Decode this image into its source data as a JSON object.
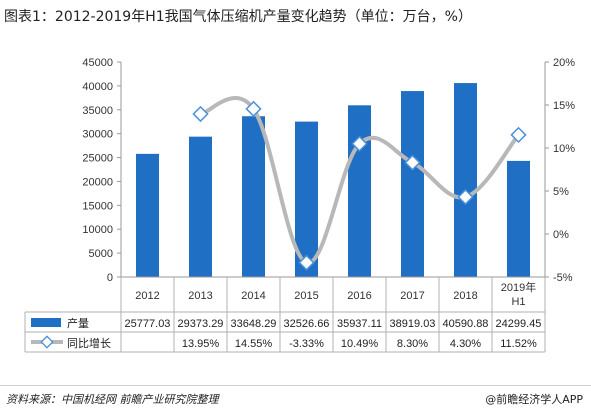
{
  "title": "图表1：2012-2019年H1我国气体压缩机产量变化趋势（单位：万台，%）",
  "footer": {
    "source": "资料来源：中国机经网  前瞻产业研究院整理",
    "brand": "@前瞻经济学人APP"
  },
  "colors": {
    "bar": "#1f6fc5",
    "line": "#b8b8b8",
    "marker": "#4a90d9"
  },
  "chart_data": {
    "type": "bar",
    "categories": [
      "2012",
      "2013",
      "2014",
      "2015",
      "2016",
      "2017",
      "2018",
      "2019年H1"
    ],
    "series": [
      {
        "name": "产量",
        "type": "bar",
        "axis": "left",
        "values": [
          25777.03,
          29373.29,
          33648.29,
          32526.66,
          35937.11,
          38919.03,
          40590.88,
          24299.45
        ],
        "labels": [
          "25777.03",
          "29373.29",
          "33648.29",
          "32526.66",
          "35937.11",
          "38919.03",
          "40590.88",
          "24299.45"
        ]
      },
      {
        "name": "同比增长",
        "type": "line",
        "axis": "right",
        "values": [
          null,
          13.95,
          14.55,
          -3.33,
          10.49,
          8.3,
          4.3,
          11.52
        ],
        "labels": [
          "",
          "13.95%",
          "14.55%",
          "-3.33%",
          "10.49%",
          "8.30%",
          "4.30%",
          "11.52%"
        ]
      }
    ],
    "ylim_left": [
      0,
      45000
    ],
    "yticks_left": [
      "0",
      "5000",
      "10000",
      "15000",
      "20000",
      "25000",
      "30000",
      "35000",
      "40000",
      "45000"
    ],
    "ylim_right": [
      -5,
      20
    ],
    "yticks_right": [
      "-5%",
      "0%",
      "5%",
      "10%",
      "15%",
      "20%"
    ],
    "legend": "table-bottom",
    "grid": false
  }
}
